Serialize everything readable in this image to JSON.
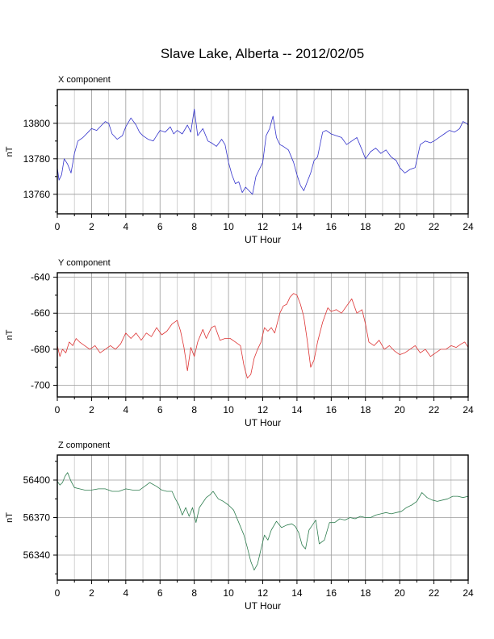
{
  "title": "Slave Lake, Alberta -- 2012/02/05",
  "chart_data": [
    {
      "type": "line",
      "title": "X component",
      "xlabel": "UT Hour",
      "ylabel": "nT",
      "xlim": [
        0,
        24
      ],
      "ylim": [
        13749,
        13819
      ],
      "xticks": [
        0,
        2,
        4,
        6,
        8,
        10,
        12,
        14,
        16,
        18,
        20,
        22,
        24
      ],
      "yticks": [
        13760,
        13780,
        13800
      ],
      "grid": true,
      "color": "#3333cc",
      "series": [
        {
          "x": [
            0,
            0.1,
            0.25,
            0.4,
            0.6,
            0.8,
            1.0,
            1.2,
            1.5,
            1.8,
            2.0,
            2.3,
            2.6,
            2.8,
            3.0,
            3.2,
            3.5,
            3.8,
            4.0,
            4.3,
            4.6,
            4.8,
            5.0,
            5.3,
            5.6,
            5.8,
            6.0,
            6.3,
            6.6,
            6.8,
            7.0,
            7.3,
            7.6,
            7.8,
            8.0,
            8.2,
            8.5,
            8.8,
            9.0,
            9.3,
            9.6,
            9.8,
            10.0,
            10.2,
            10.4,
            10.6,
            10.8,
            11.0,
            11.2,
            11.4,
            11.6,
            11.8,
            12.0,
            12.2,
            12.4,
            12.6,
            12.8,
            13.0,
            13.2,
            13.5,
            13.8,
            14.0,
            14.2,
            14.4,
            14.6,
            14.8,
            15.0,
            15.2,
            15.5,
            15.7,
            16.0,
            16.3,
            16.6,
            16.9,
            17.2,
            17.5,
            17.8,
            18.0,
            18.3,
            18.6,
            18.9,
            19.2,
            19.5,
            19.8,
            20.0,
            20.3,
            20.6,
            20.9,
            21.2,
            21.5,
            21.8,
            22.0,
            22.3,
            22.6,
            22.9,
            23.2,
            23.5,
            23.7,
            23.9,
            24.0
          ],
          "values": [
            13775,
            13768,
            13771,
            13780,
            13777,
            13772,
            13783,
            13790,
            13792,
            13795,
            13797,
            13796,
            13799,
            13801,
            13800,
            13794,
            13791,
            13793,
            13798,
            13803,
            13799,
            13795,
            13793,
            13791,
            13790,
            13793,
            13796,
            13795,
            13798,
            13794,
            13796,
            13794,
            13799,
            13795,
            13808,
            13793,
            13797,
            13790,
            13789,
            13787,
            13791,
            13788,
            13778,
            13771,
            13766,
            13767,
            13761,
            13764,
            13762,
            13760,
            13770,
            13774,
            13778,
            13793,
            13797,
            13804,
            13792,
            13788,
            13787,
            13785,
            13778,
            13771,
            13765,
            13762,
            13767,
            13772,
            13779,
            13781,
            13795,
            13796,
            13794,
            13793,
            13792,
            13788,
            13790,
            13792,
            13785,
            13780,
            13784,
            13786,
            13783,
            13785,
            13781,
            13779,
            13775,
            13772,
            13774,
            13775,
            13788,
            13790,
            13789,
            13790,
            13792,
            13794,
            13796,
            13795,
            13797,
            13801,
            13800,
            13799
          ]
        }
      ]
    },
    {
      "type": "line",
      "title": "Y component",
      "xlabel": "UT Hour",
      "ylabel": "nT",
      "xlim": [
        0,
        24
      ],
      "ylim": [
        -706.5,
        -637.5
      ],
      "xticks": [
        0,
        2,
        4,
        6,
        8,
        10,
        12,
        14,
        16,
        18,
        20,
        22,
        24
      ],
      "yticks": [
        -700,
        -680,
        -660,
        -640
      ],
      "grid": true,
      "color": "#dd3333",
      "series": [
        {
          "x": [
            0,
            0.15,
            0.3,
            0.5,
            0.7,
            0.9,
            1.1,
            1.3,
            1.6,
            1.9,
            2.2,
            2.5,
            2.8,
            3.1,
            3.4,
            3.7,
            4.0,
            4.3,
            4.6,
            4.9,
            5.2,
            5.5,
            5.8,
            6.1,
            6.4,
            6.7,
            7.0,
            7.2,
            7.4,
            7.6,
            7.8,
            8.0,
            8.2,
            8.5,
            8.7,
            9.0,
            9.2,
            9.5,
            9.8,
            10.1,
            10.4,
            10.7,
            10.9,
            11.1,
            11.3,
            11.5,
            11.7,
            11.9,
            12.1,
            12.3,
            12.5,
            12.7,
            13.0,
            13.2,
            13.4,
            13.6,
            13.8,
            14.0,
            14.2,
            14.4,
            14.6,
            14.8,
            15.0,
            15.2,
            15.5,
            15.8,
            16.0,
            16.3,
            16.6,
            16.9,
            17.2,
            17.5,
            17.8,
            18.0,
            18.2,
            18.5,
            18.8,
            19.1,
            19.4,
            19.7,
            20.0,
            20.3,
            20.6,
            20.9,
            21.2,
            21.5,
            21.8,
            22.1,
            22.4,
            22.7,
            23.0,
            23.3,
            23.6,
            23.8,
            24.0
          ],
          "values": [
            -678,
            -684,
            -680,
            -682,
            -676,
            -678,
            -674,
            -676,
            -678,
            -680,
            -678,
            -682,
            -680,
            -678,
            -680,
            -677,
            -671,
            -674,
            -671,
            -675,
            -671,
            -673,
            -668,
            -672,
            -670,
            -666,
            -664,
            -670,
            -679,
            -692,
            -679,
            -684,
            -676,
            -669,
            -674,
            -668,
            -667,
            -675,
            -674,
            -674,
            -676,
            -678,
            -689,
            -696,
            -694,
            -685,
            -680,
            -676,
            -668,
            -670,
            -668,
            -671,
            -660,
            -656,
            -655,
            -651,
            -649,
            -650,
            -655,
            -662,
            -675,
            -690,
            -686,
            -676,
            -665,
            -657,
            -659,
            -658,
            -660,
            -656,
            -652,
            -660,
            -658,
            -666,
            -676,
            -678,
            -675,
            -680,
            -678,
            -681,
            -683,
            -682,
            -680,
            -678,
            -682,
            -680,
            -684,
            -682,
            -680,
            -680,
            -678,
            -679,
            -677,
            -676,
            -679
          ]
        }
      ]
    },
    {
      "type": "line",
      "title": "Z component",
      "xlabel": "UT Hour",
      "ylabel": "nT",
      "xlim": [
        0,
        24
      ],
      "ylim": [
        56320,
        56420
      ],
      "xticks": [
        0,
        2,
        4,
        6,
        8,
        10,
        12,
        14,
        16,
        18,
        20,
        22,
        24
      ],
      "yticks": [
        56340,
        56370,
        56400
      ],
      "grid": true,
      "color": "#2e7d4f",
      "series": [
        {
          "x": [
            0,
            0.15,
            0.3,
            0.45,
            0.6,
            0.8,
            1.0,
            1.3,
            1.6,
            2.0,
            2.4,
            2.8,
            3.2,
            3.6,
            4.0,
            4.4,
            4.8,
            5.1,
            5.4,
            5.8,
            6.1,
            6.4,
            6.7,
            6.9,
            7.1,
            7.3,
            7.5,
            7.7,
            7.9,
            8.1,
            8.3,
            8.5,
            8.7,
            8.9,
            9.1,
            9.4,
            9.7,
            10.0,
            10.3,
            10.6,
            10.9,
            11.1,
            11.3,
            11.5,
            11.7,
            11.9,
            12.1,
            12.3,
            12.5,
            12.8,
            13.1,
            13.4,
            13.7,
            13.9,
            14.1,
            14.3,
            14.5,
            14.7,
            14.9,
            15.1,
            15.3,
            15.6,
            15.9,
            16.2,
            16.5,
            16.8,
            17.1,
            17.4,
            17.7,
            18.0,
            18.3,
            18.6,
            18.9,
            19.2,
            19.5,
            19.8,
            20.1,
            20.4,
            20.7,
            21.0,
            21.3,
            21.6,
            21.9,
            22.2,
            22.5,
            22.8,
            23.1,
            23.4,
            23.7,
            24.0
          ],
          "values": [
            56399,
            56396,
            56398,
            56403,
            56406,
            56399,
            56394,
            56393,
            56392,
            56392,
            56393,
            56393,
            56391,
            56391,
            56393,
            56392,
            56392,
            56395,
            56398,
            56395,
            56392,
            56391,
            56391,
            56385,
            56380,
            56372,
            56378,
            56371,
            56378,
            56366,
            56378,
            56382,
            56386,
            56388,
            56391,
            56385,
            56383,
            56380,
            56376,
            56366,
            56356,
            56346,
            56335,
            56328,
            56333,
            56345,
            56356,
            56352,
            56360,
            56367,
            56362,
            56364,
            56365,
            56363,
            56358,
            56348,
            56345,
            56360,
            56364,
            56368,
            56349,
            56352,
            56366,
            56366,
            56369,
            56368,
            56370,
            56369,
            56371,
            56370,
            56370,
            56372,
            56373,
            56374,
            56373,
            56374,
            56375,
            56378,
            56380,
            56383,
            56390,
            56386,
            56384,
            56383,
            56384,
            56385,
            56387,
            56387,
            56386,
            56387
          ]
        }
      ]
    }
  ]
}
